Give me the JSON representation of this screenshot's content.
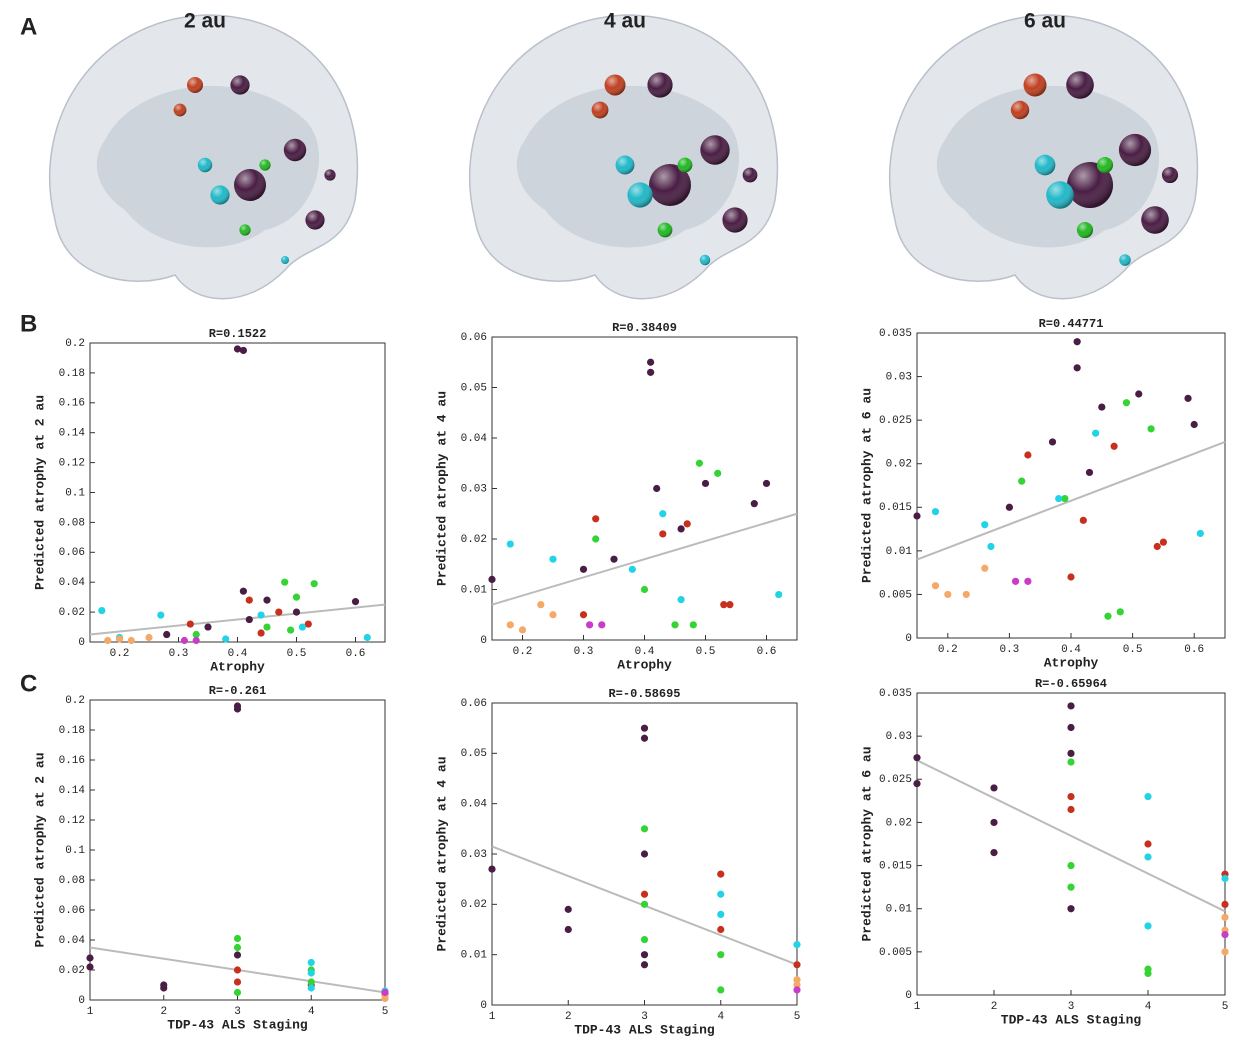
{
  "panel_labels": [
    "A",
    "B",
    "C"
  ],
  "brain_titles": [
    "2 au",
    "4 au",
    "6 au"
  ],
  "chart_data": [
    {
      "type": "scatter",
      "title": "R=0.1522",
      "x_label": "Atrophy",
      "y_label": "Predicted atrophy at 2 au",
      "xlim": [
        0.15,
        0.65
      ],
      "xticks": [
        0.2,
        0.3,
        0.4,
        0.5,
        0.6
      ],
      "ylim": [
        0,
        0.2
      ],
      "yticks": [
        0,
        0.02,
        0.04,
        0.06,
        0.08,
        0.1,
        0.12,
        0.14,
        0.16,
        0.18,
        0.2
      ],
      "series": [
        {
          "color": "#4a1e44",
          "x": [
            0.4,
            0.41,
            0.41,
            0.6,
            0.45,
            0.28,
            0.35,
            0.5,
            0.42
          ],
          "values": [
            0.196,
            0.195,
            0.034,
            0.027,
            0.028,
            0.005,
            0.01,
            0.02,
            0.015
          ]
        },
        {
          "color": "#c8301e",
          "x": [
            0.32,
            0.42,
            0.47,
            0.52,
            0.44
          ],
          "values": [
            0.012,
            0.028,
            0.02,
            0.012,
            0.006
          ]
        },
        {
          "color": "#33d433",
          "x": [
            0.48,
            0.53,
            0.45,
            0.49,
            0.33,
            0.5
          ],
          "values": [
            0.04,
            0.039,
            0.01,
            0.008,
            0.005,
            0.03
          ]
        },
        {
          "color": "#22d3e6",
          "x": [
            0.17,
            0.27,
            0.2,
            0.44,
            0.38,
            0.62,
            0.51
          ],
          "values": [
            0.021,
            0.018,
            0.003,
            0.018,
            0.002,
            0.003,
            0.01
          ]
        },
        {
          "color": "#f4aa66",
          "x": [
            0.2,
            0.22,
            0.25,
            0.18
          ],
          "values": [
            0.002,
            0.001,
            0.003,
            0.001
          ]
        },
        {
          "color": "#c83cc8",
          "x": [
            0.31,
            0.33
          ],
          "values": [
            0.001,
            0.001
          ]
        }
      ],
      "fit": {
        "color": "#bbbbbb",
        "x": [
          0.15,
          0.65
        ],
        "values": [
          0.005,
          0.025
        ]
      }
    },
    {
      "type": "scatter",
      "title": "R=0.38409",
      "x_label": "Atrophy",
      "y_label": "Predicted atrophy at 4 au",
      "xlim": [
        0.15,
        0.65
      ],
      "xticks": [
        0.2,
        0.3,
        0.4,
        0.5,
        0.6
      ],
      "ylim": [
        0,
        0.06
      ],
      "yticks": [
        0,
        0.01,
        0.02,
        0.03,
        0.04,
        0.05,
        0.06
      ],
      "series": [
        {
          "color": "#4a1e44",
          "x": [
            0.41,
            0.41,
            0.15,
            0.6,
            0.58,
            0.5,
            0.46,
            0.3,
            0.35,
            0.42
          ],
          "values": [
            0.055,
            0.053,
            0.012,
            0.031,
            0.027,
            0.031,
            0.022,
            0.014,
            0.016,
            0.03
          ]
        },
        {
          "color": "#c8301e",
          "x": [
            0.32,
            0.43,
            0.47,
            0.53,
            0.54,
            0.3
          ],
          "values": [
            0.024,
            0.021,
            0.023,
            0.007,
            0.007,
            0.005
          ]
        },
        {
          "color": "#33d433",
          "x": [
            0.49,
            0.52,
            0.32,
            0.45,
            0.48,
            0.4
          ],
          "values": [
            0.035,
            0.033,
            0.02,
            0.003,
            0.003,
            0.01
          ]
        },
        {
          "color": "#22d3e6",
          "x": [
            0.18,
            0.25,
            0.62,
            0.43,
            0.38,
            0.46
          ],
          "values": [
            0.019,
            0.016,
            0.009,
            0.025,
            0.014,
            0.008
          ]
        },
        {
          "color": "#f4aa66",
          "x": [
            0.18,
            0.2,
            0.23,
            0.25
          ],
          "values": [
            0.003,
            0.002,
            0.007,
            0.005
          ]
        },
        {
          "color": "#c83cc8",
          "x": [
            0.31,
            0.33
          ],
          "values": [
            0.003,
            0.003
          ]
        }
      ],
      "fit": {
        "color": "#bbbbbb",
        "x": [
          0.15,
          0.65
        ],
        "values": [
          0.007,
          0.025
        ]
      }
    },
    {
      "type": "scatter",
      "title": "R=0.44771",
      "x_label": "Atrophy",
      "y_label": "Predicted atrophy at 6 au",
      "xlim": [
        0.15,
        0.65
      ],
      "xticks": [
        0.2,
        0.3,
        0.4,
        0.5,
        0.6
      ],
      "ylim": [
        0,
        0.035
      ],
      "yticks": [
        0,
        0.005,
        0.01,
        0.015,
        0.02,
        0.025,
        0.03,
        0.035
      ],
      "series": [
        {
          "color": "#4a1e44",
          "x": [
            0.41,
            0.41,
            0.15,
            0.59,
            0.6,
            0.51,
            0.45,
            0.37,
            0.3,
            0.43
          ],
          "values": [
            0.034,
            0.031,
            0.014,
            0.0275,
            0.0245,
            0.028,
            0.0265,
            0.0225,
            0.015,
            0.019
          ]
        },
        {
          "color": "#c8301e",
          "x": [
            0.33,
            0.4,
            0.47,
            0.54,
            0.55,
            0.42
          ],
          "values": [
            0.021,
            0.007,
            0.022,
            0.0105,
            0.011,
            0.0135
          ]
        },
        {
          "color": "#33d433",
          "x": [
            0.49,
            0.53,
            0.32,
            0.46,
            0.48,
            0.39
          ],
          "values": [
            0.027,
            0.024,
            0.018,
            0.0025,
            0.003,
            0.016
          ]
        },
        {
          "color": "#22d3e6",
          "x": [
            0.18,
            0.26,
            0.61,
            0.44,
            0.38,
            0.27
          ],
          "values": [
            0.0145,
            0.013,
            0.012,
            0.0235,
            0.016,
            0.0105
          ]
        },
        {
          "color": "#f4aa66",
          "x": [
            0.18,
            0.2,
            0.23,
            0.26
          ],
          "values": [
            0.006,
            0.005,
            0.005,
            0.008
          ]
        },
        {
          "color": "#c83cc8",
          "x": [
            0.31,
            0.33
          ],
          "values": [
            0.0065,
            0.0065
          ]
        }
      ],
      "fit": {
        "color": "#bbbbbb",
        "x": [
          0.15,
          0.65
        ],
        "values": [
          0.009,
          0.0225
        ]
      }
    },
    {
      "type": "scatter",
      "title": "R=-0.261",
      "x_label": "TDP-43 ALS Staging",
      "y_label": "Predicted atrophy at 2 au",
      "xlim": [
        1,
        5
      ],
      "xticks": [
        1,
        2,
        3,
        4,
        5
      ],
      "ylim": [
        0,
        0.2
      ],
      "yticks": [
        0,
        0.02,
        0.04,
        0.06,
        0.08,
        0.1,
        0.12,
        0.14,
        0.16,
        0.18,
        0.2
      ],
      "series": [
        {
          "color": "#4a1e44",
          "x": [
            1,
            1,
            2,
            2,
            3,
            3,
            3
          ],
          "values": [
            0.028,
            0.022,
            0.01,
            0.008,
            0.196,
            0.194,
            0.03
          ]
        },
        {
          "color": "#c8301e",
          "x": [
            3,
            3,
            4,
            5
          ],
          "values": [
            0.02,
            0.012,
            0.01,
            0.004
          ]
        },
        {
          "color": "#33d433",
          "x": [
            3,
            3,
            3,
            4,
            4
          ],
          "values": [
            0.041,
            0.035,
            0.005,
            0.02,
            0.012
          ]
        },
        {
          "color": "#22d3e6",
          "x": [
            4,
            4,
            4,
            5
          ],
          "values": [
            0.025,
            0.018,
            0.008,
            0.006
          ]
        },
        {
          "color": "#f4aa66",
          "x": [
            5,
            5
          ],
          "values": [
            0.003,
            0.001
          ]
        },
        {
          "color": "#c83cc8",
          "x": [
            5
          ],
          "values": [
            0.005
          ]
        }
      ],
      "fit": {
        "color": "#bbbbbb",
        "x": [
          1,
          5
        ],
        "values": [
          0.035,
          0.005
        ]
      }
    },
    {
      "type": "scatter",
      "title": "R=-0.58695",
      "x_label": "TDP-43 ALS Staging",
      "y_label": "Predicted atrophy at 4 au",
      "xlim": [
        1,
        5
      ],
      "xticks": [
        1,
        2,
        3,
        4,
        5
      ],
      "ylim": [
        0,
        0.06
      ],
      "yticks": [
        0,
        0.01,
        0.02,
        0.03,
        0.04,
        0.05,
        0.06
      ],
      "series": [
        {
          "color": "#4a1e44",
          "x": [
            1,
            2,
            2,
            3,
            3,
            3,
            3,
            3
          ],
          "values": [
            0.027,
            0.019,
            0.015,
            0.055,
            0.053,
            0.03,
            0.01,
            0.008
          ]
        },
        {
          "color": "#c8301e",
          "x": [
            3,
            4,
            4,
            5
          ],
          "values": [
            0.022,
            0.026,
            0.015,
            0.008
          ]
        },
        {
          "color": "#33d433",
          "x": [
            3,
            3,
            3,
            4,
            4
          ],
          "values": [
            0.035,
            0.02,
            0.013,
            0.003,
            0.01
          ]
        },
        {
          "color": "#22d3e6",
          "x": [
            4,
            4,
            5
          ],
          "values": [
            0.022,
            0.018,
            0.012
          ]
        },
        {
          "color": "#f4aa66",
          "x": [
            5,
            5
          ],
          "values": [
            0.005,
            0.004
          ]
        },
        {
          "color": "#c83cc8",
          "x": [
            5
          ],
          "values": [
            0.003
          ]
        }
      ],
      "fit": {
        "color": "#bbbbbb",
        "x": [
          1,
          5
        ],
        "values": [
          0.0315,
          0.008
        ]
      }
    },
    {
      "type": "scatter",
      "title": "R=-0.65964",
      "x_label": "TDP-43 ALS Staging",
      "y_label": "Predicted atrophy at 6 au",
      "xlim": [
        1,
        5
      ],
      "xticks": [
        1,
        2,
        3,
        4,
        5
      ],
      "ylim": [
        0,
        0.035
      ],
      "yticks": [
        0,
        0.005,
        0.01,
        0.015,
        0.02,
        0.025,
        0.03,
        0.035
      ],
      "series": [
        {
          "color": "#4a1e44",
          "x": [
            1,
            1,
            2,
            2,
            2,
            3,
            3,
            3,
            3
          ],
          "values": [
            0.0275,
            0.0245,
            0.024,
            0.02,
            0.0165,
            0.0335,
            0.031,
            0.028,
            0.01
          ]
        },
        {
          "color": "#c8301e",
          "x": [
            3,
            3,
            4,
            5,
            5
          ],
          "values": [
            0.023,
            0.0215,
            0.0175,
            0.014,
            0.0105
          ]
        },
        {
          "color": "#33d433",
          "x": [
            3,
            3,
            3,
            4,
            4
          ],
          "values": [
            0.027,
            0.015,
            0.0125,
            0.003,
            0.0025
          ]
        },
        {
          "color": "#22d3e6",
          "x": [
            4,
            4,
            4,
            5
          ],
          "values": [
            0.023,
            0.016,
            0.008,
            0.0135
          ]
        },
        {
          "color": "#f4aa66",
          "x": [
            5,
            5,
            5
          ],
          "values": [
            0.009,
            0.0075,
            0.005
          ]
        },
        {
          "color": "#c83cc8",
          "x": [
            5
          ],
          "values": [
            0.007
          ]
        }
      ],
      "fit": {
        "color": "#bbbbbb",
        "x": [
          1,
          5
        ],
        "values": [
          0.0272,
          0.0097
        ]
      }
    }
  ]
}
